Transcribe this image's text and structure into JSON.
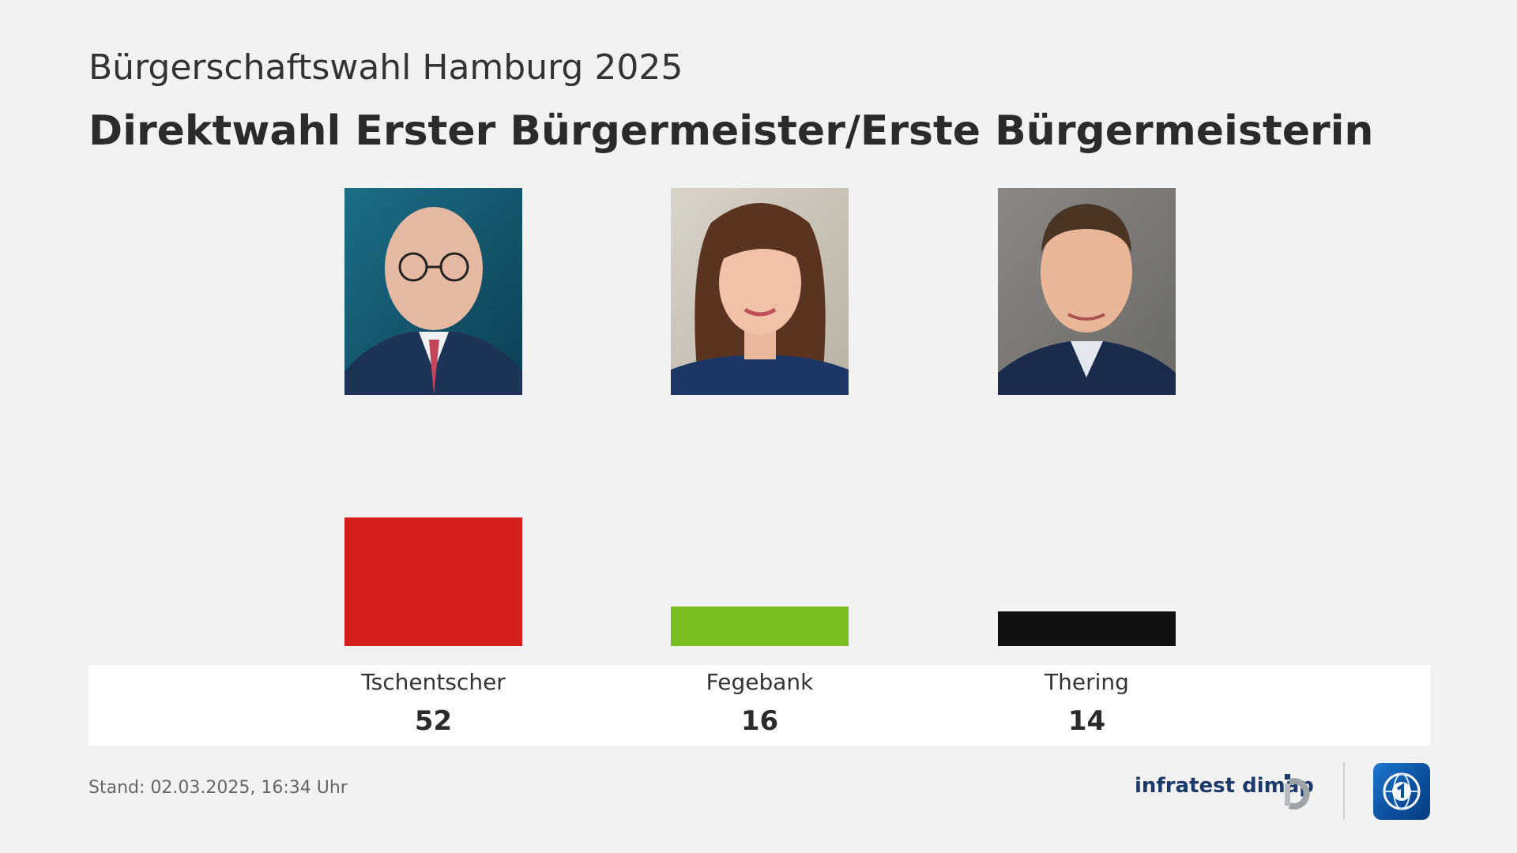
{
  "header": {
    "subtitle": "Bürgerschaftswahl Hamburg 2025",
    "title": "Direktwahl Erster Bürgermeister/Erste Bürgermeisterin"
  },
  "chart_data": {
    "type": "bar",
    "categories": [
      "Tschentscher",
      "Fegebank",
      "Thering"
    ],
    "values": [
      52,
      16,
      14
    ],
    "colors": [
      "#d61e1e",
      "#78be20",
      "#111111"
    ],
    "title": "Direktwahl Erster Bürgermeister/Erste Bürgermeisterin",
    "subtitle": "Bürgerschaftswahl Hamburg 2025",
    "xlabel": "",
    "ylabel": "",
    "ylim": [
      0,
      100
    ],
    "grid": false,
    "legend": "none"
  },
  "candidates": [
    {
      "name": "Tschentscher",
      "value": "52"
    },
    {
      "name": "Fegebank",
      "value": "16"
    },
    {
      "name": "Thering",
      "value": "14"
    }
  ],
  "footer": {
    "stand": "Stand:  02.03.2025, 16:34 Uhr",
    "brand": "infratest dimap"
  },
  "icons": {
    "infratest": "infratest-dimap-logo-icon",
    "ard": "tagesschau-globe-logo-icon"
  }
}
